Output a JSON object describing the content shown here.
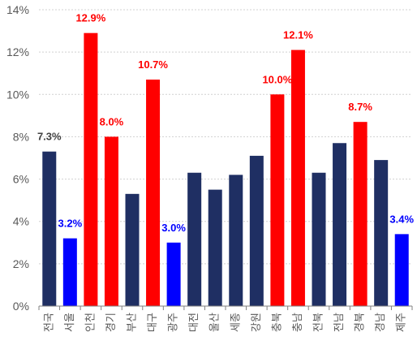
{
  "chart_data": {
    "type": "bar",
    "title": "",
    "xlabel": "",
    "ylabel": "",
    "ylim": [
      0,
      14
    ],
    "yticks": [
      0,
      2,
      4,
      6,
      8,
      10,
      12,
      14
    ],
    "ytick_labels": [
      "0%",
      "2%",
      "4%",
      "6%",
      "8%",
      "10%",
      "12%",
      "14%"
    ],
    "grid": "horizontal",
    "categories": [
      "전국",
      "서울",
      "인천",
      "경기",
      "부산",
      "대구",
      "광주",
      "대전",
      "울산",
      "세종",
      "강원",
      "충북",
      "충남",
      "전북",
      "전남",
      "경북",
      "경남",
      "제주"
    ],
    "values": [
      7.3,
      3.2,
      12.9,
      8.0,
      5.3,
      10.7,
      3.0,
      6.3,
      5.5,
      6.2,
      7.1,
      10.0,
      12.1,
      6.3,
      7.7,
      8.7,
      6.9,
      3.4
    ],
    "bar_colors": [
      "#1f2f63",
      "#0000ff",
      "#ff0000",
      "#ff0000",
      "#1f2f63",
      "#ff0000",
      "#0000ff",
      "#1f2f63",
      "#1f2f63",
      "#1f2f63",
      "#1f2f63",
      "#ff0000",
      "#ff0000",
      "#1f2f63",
      "#1f2f63",
      "#ff0000",
      "#1f2f63",
      "#0000ff"
    ],
    "data_labels": [
      {
        "index": 0,
        "text": "7.3%",
        "color": "#404040"
      },
      {
        "index": 1,
        "text": "3.2%",
        "color": "#0000ff"
      },
      {
        "index": 2,
        "text": "12.9%",
        "color": "#ff0000"
      },
      {
        "index": 3,
        "text": "8.0%",
        "color": "#ff0000"
      },
      {
        "index": 5,
        "text": "10.7%",
        "color": "#ff0000"
      },
      {
        "index": 6,
        "text": "3.0%",
        "color": "#0000ff"
      },
      {
        "index": 11,
        "text": "10.0%",
        "color": "#ff0000"
      },
      {
        "index": 12,
        "text": "12.1%",
        "color": "#ff0000"
      },
      {
        "index": 15,
        "text": "8.7%",
        "color": "#ff0000"
      },
      {
        "index": 17,
        "text": "3.4%",
        "color": "#0000ff"
      }
    ],
    "colors": {
      "base": "#1f2f63",
      "low": "#0000ff",
      "high": "#ff0000",
      "grid": "#d0d0d0",
      "axis": "#808080"
    }
  }
}
